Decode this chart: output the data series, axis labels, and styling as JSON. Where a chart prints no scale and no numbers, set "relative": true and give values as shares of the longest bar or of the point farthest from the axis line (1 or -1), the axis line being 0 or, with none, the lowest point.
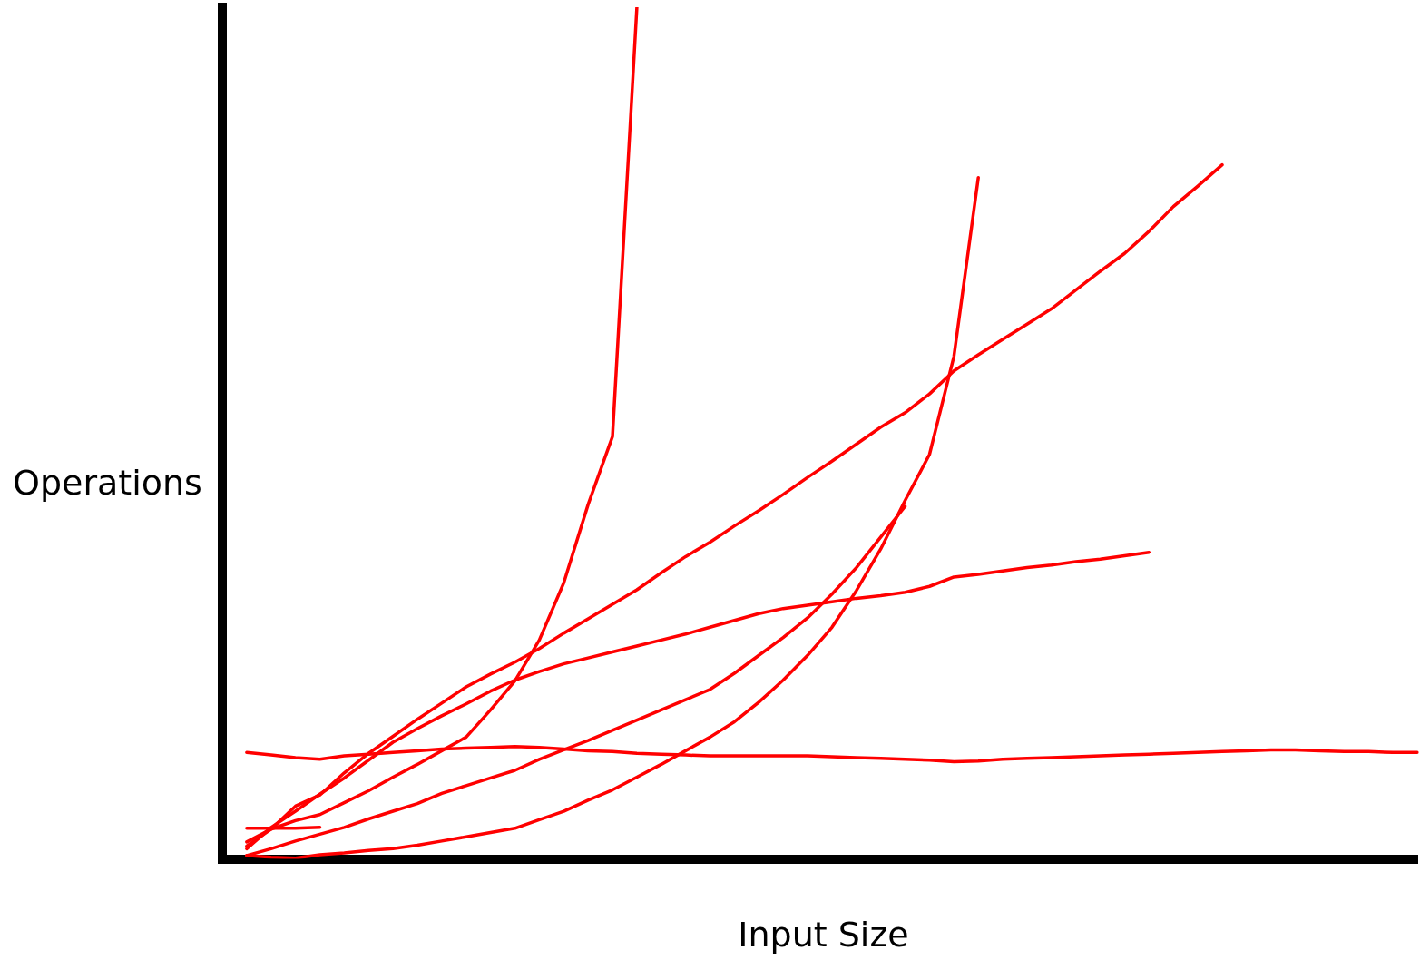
{
  "chart_data": {
    "type": "line",
    "relative": true,
    "xlabel": "Input Size",
    "ylabel": "Operations",
    "legend": false,
    "marker": "none",
    "line_style": "solid",
    "categories": [
      null,
      null,
      null,
      null,
      null,
      null,
      null,
      null,
      null,
      null,
      null,
      null,
      null,
      null,
      null,
      null,
      null,
      null,
      null,
      null,
      null,
      null,
      null,
      null,
      null,
      null,
      null,
      null,
      null,
      null,
      null,
      null,
      null,
      null,
      null,
      null,
      null,
      null,
      null,
      null,
      null,
      null,
      null,
      null,
      null,
      null,
      null,
      null,
      null,
      null
    ],
    "series": [
      {
        "color": "#ff0000",
        "values": [
          null,
          0.036,
          0.036,
          0.036,
          0.037,
          null,
          null,
          null,
          null,
          null,
          null,
          null,
          null,
          null,
          null,
          null,
          null,
          null,
          null,
          null,
          null,
          null,
          null,
          null,
          null,
          null,
          null,
          null,
          null,
          null,
          null,
          null,
          null,
          null,
          null,
          null,
          null,
          null,
          null,
          null,
          null,
          null,
          null,
          null,
          null,
          null,
          null,
          null,
          null,
          null
        ]
      },
      {
        "color": "#ff0000",
        "values": [
          null,
          0.125,
          0.122,
          0.119,
          0.117,
          0.121,
          0.123,
          0.125,
          0.127,
          0.129,
          0.13,
          0.131,
          0.132,
          0.131,
          0.129,
          0.127,
          0.126,
          0.124,
          0.123,
          0.122,
          0.121,
          0.121,
          0.121,
          0.121,
          0.121,
          0.12,
          0.119,
          0.118,
          0.117,
          0.116,
          0.114,
          0.115,
          0.117,
          0.118,
          0.119,
          0.12,
          0.121,
          0.122,
          0.123,
          0.124,
          0.125,
          0.126,
          0.127,
          0.128,
          0.128,
          0.127,
          0.126,
          0.126,
          0.125,
          0.125
        ]
      },
      {
        "color": "#ff0000",
        "values": [
          null,
          0.02,
          0.035,
          0.045,
          0.052,
          0.066,
          0.08,
          0.096,
          0.111,
          0.127,
          0.143,
          0.175,
          0.209,
          0.257,
          0.324,
          0.416,
          0.496,
          1,
          null,
          null,
          null,
          null,
          null,
          null,
          null,
          null,
          null,
          null,
          null,
          null,
          null,
          null,
          null,
          null,
          null,
          null,
          null,
          null,
          null,
          null,
          null,
          null,
          null,
          null,
          null,
          null,
          null,
          null,
          null,
          null
        ]
      },
      {
        "color": "#ff0000",
        "values": [
          null,
          0.004,
          0.002,
          0.001,
          0.005,
          0.007,
          0.01,
          0.012,
          0.016,
          0.021,
          0.026,
          0.031,
          0.036,
          0.046,
          0.056,
          0.069,
          0.081,
          0.096,
          0.111,
          0.127,
          0.143,
          0.161,
          0.184,
          0.21,
          0.239,
          0.272,
          0.315,
          0.364,
          0.421,
          0.475,
          0.59,
          0.8,
          null,
          null,
          null,
          null,
          null,
          null,
          null,
          null,
          null,
          null,
          null,
          null,
          null,
          null,
          null,
          null,
          null,
          null
        ]
      },
      {
        "color": "#ff0000",
        "values": [
          null,
          0.004,
          0.012,
          0.021,
          0.029,
          0.037,
          0.047,
          0.056,
          0.065,
          0.077,
          0.086,
          0.095,
          0.104,
          0.117,
          0.128,
          0.139,
          0.151,
          0.163,
          0.175,
          0.187,
          0.199,
          0.218,
          0.239,
          0.26,
          0.283,
          0.311,
          0.342,
          0.378,
          0.414,
          null,
          null,
          null,
          null,
          null,
          null,
          null,
          null,
          null,
          null,
          null,
          null,
          null,
          null,
          null,
          null,
          null,
          null,
          null,
          null,
          null
        ]
      },
      {
        "color": "#ff0000",
        "values": [
          null,
          0.015,
          0.035,
          0.062,
          0.075,
          0.101,
          0.124,
          0.144,
          0.164,
          0.183,
          0.202,
          0.217,
          0.231,
          0.247,
          0.265,
          0.282,
          0.299,
          0.316,
          0.336,
          0.355,
          0.372,
          0.391,
          0.409,
          0.428,
          0.448,
          0.467,
          0.487,
          0.507,
          0.524,
          0.546,
          0.573,
          0.592,
          0.61,
          0.628,
          0.646,
          0.668,
          0.69,
          0.711,
          0.737,
          0.766,
          0.79,
          0.815,
          null,
          null,
          null,
          null,
          null,
          null,
          null,
          null
        ]
      },
      {
        "color": "#ff0000",
        "values": [
          null,
          0.012,
          0.037,
          0.056,
          0.076,
          0.095,
          0.116,
          0.137,
          0.153,
          0.168,
          0.182,
          0.197,
          0.21,
          0.22,
          0.229,
          0.236,
          0.243,
          0.25,
          0.257,
          0.264,
          0.272,
          0.28,
          0.288,
          0.294,
          0.298,
          0.302,
          0.306,
          0.309,
          0.313,
          0.32,
          0.331,
          0.334,
          0.338,
          0.342,
          0.345,
          0.349,
          0.352,
          0.356,
          0.36,
          null,
          null,
          null,
          null,
          null,
          null,
          null,
          null,
          null,
          null,
          null
        ]
      }
    ]
  }
}
